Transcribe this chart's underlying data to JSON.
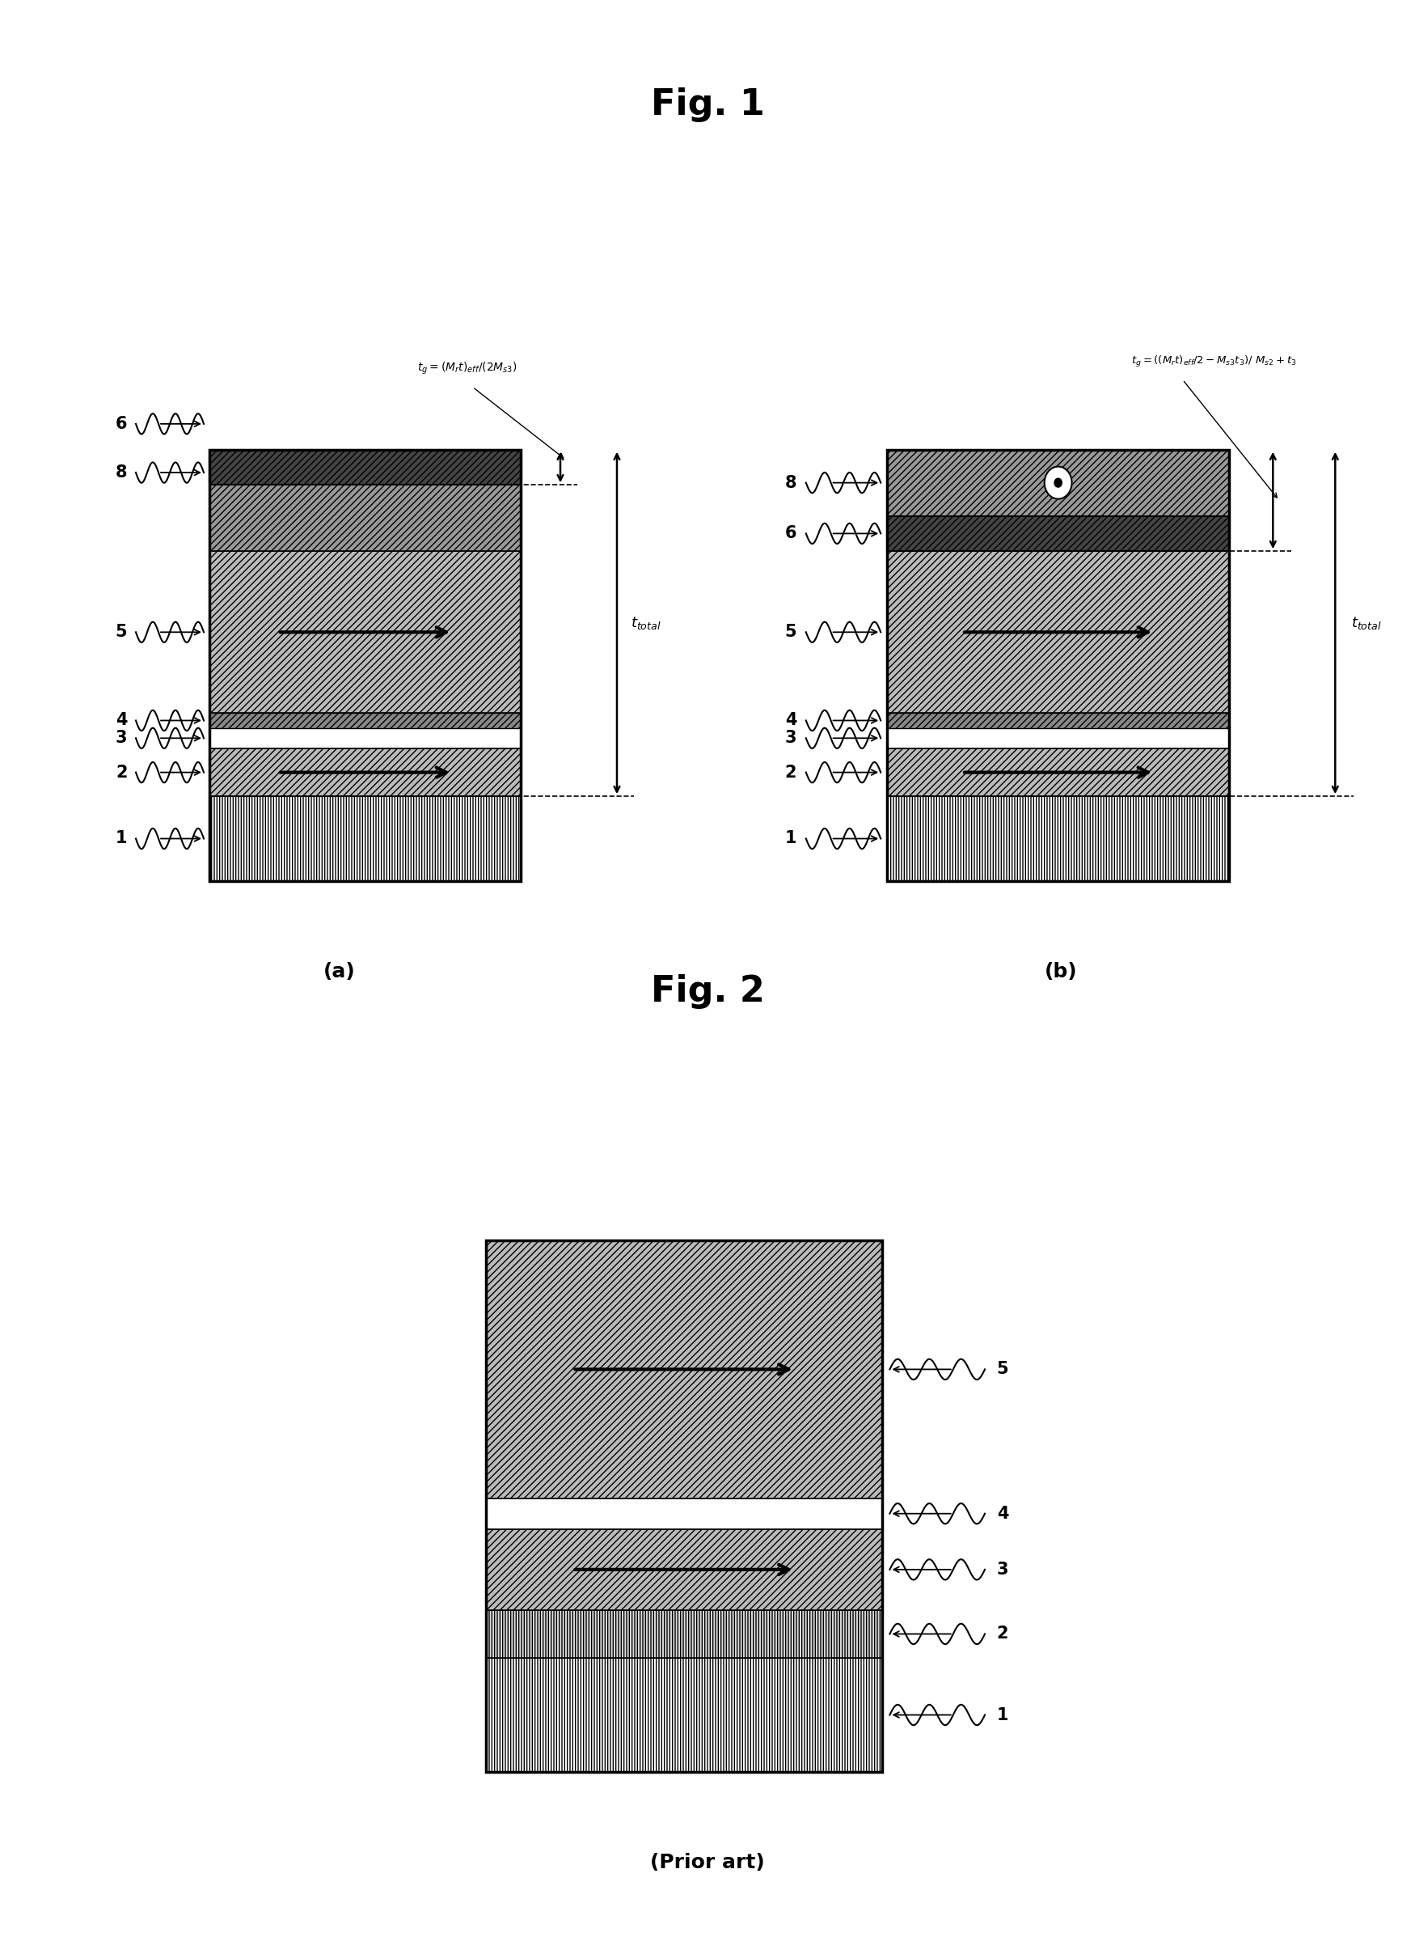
{
  "fig1_title": "Fig. 1",
  "fig2_title": "Fig. 2",
  "fig1a_label": "(a)",
  "fig1b_label": "(b)",
  "fig2_sublabel": "(Prior art)",
  "bg_color": "#ffffff"
}
